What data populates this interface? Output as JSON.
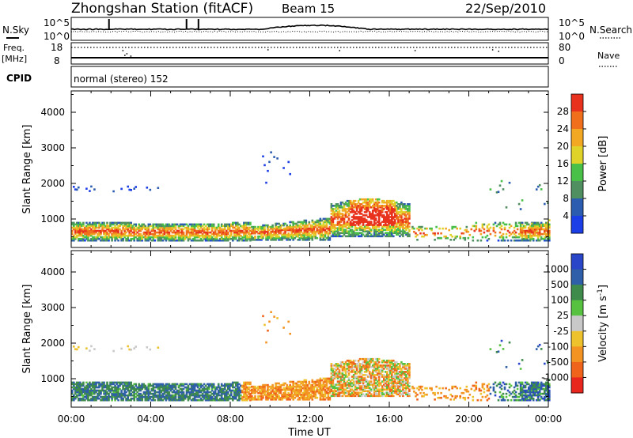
{
  "header": {
    "station": "Zhongshan Station (fitACF)",
    "beam": "Beam 15",
    "date": "22/Sep/2010"
  },
  "top_panels": {
    "nsky_label": "N.Sky",
    "nsearch_label": "N.Search",
    "left_top_tick": "10^5",
    "left_bottom_tick": "10^0",
    "right_top_tick": "10^5",
    "right_bottom_tick": "10^0",
    "freq_label": "Freq.",
    "freq_unit": "[MHz]",
    "freq_top_tick": "18",
    "freq_bottom_tick": "8",
    "nave_label": "Nave",
    "nave_top_tick": "80",
    "nave_bottom_tick": "0",
    "cpid_label": "CPID",
    "cpid_value": "normal (stereo) 152"
  },
  "colors": {
    "power": [
      "#1c3ee6",
      "#2b5cb0",
      "#4f8f60",
      "#49c047",
      "#dfd32a",
      "#f3a824",
      "#f06f1d",
      "#e8321d"
    ],
    "velocity": [
      "#e8261d",
      "#ef631b",
      "#f39422",
      "#eec22c",
      "#c8c8c8",
      "#57c23f",
      "#3e8b4c",
      "#2f5fa8",
      "#2a46c8"
    ]
  },
  "chart_data": [
    {
      "type": "heatmap",
      "panel": "power",
      "xlabel": "",
      "ylabel": "Slant Range [km]",
      "ylim": [
        200,
        4600
      ],
      "yticks": [
        "1000",
        "2000",
        "3000",
        "4000"
      ],
      "colorbar_label": "Power [dB]",
      "colorbar_ticks": [
        "4",
        "8",
        "12",
        "16",
        "20",
        "24",
        "28"
      ],
      "xlim": [
        0,
        24
      ]
    },
    {
      "type": "heatmap",
      "panel": "velocity",
      "xlabel": "Time UT",
      "ylabel": "Slant Range [km]",
      "ylim": [
        200,
        4600
      ],
      "yticks": [
        "1000",
        "2000",
        "3000",
        "4000"
      ],
      "colorbar_label": "Velocity [m s^-1]",
      "colorbar_ticks": [
        "1000",
        "500",
        "100",
        "25",
        "-25",
        "-100",
        "-500",
        "-1000"
      ],
      "xticks": [
        "00:00",
        "04:00",
        "08:00",
        "12:00",
        "16:00",
        "20:00",
        "00:00"
      ],
      "xlim": [
        0,
        24
      ]
    }
  ]
}
